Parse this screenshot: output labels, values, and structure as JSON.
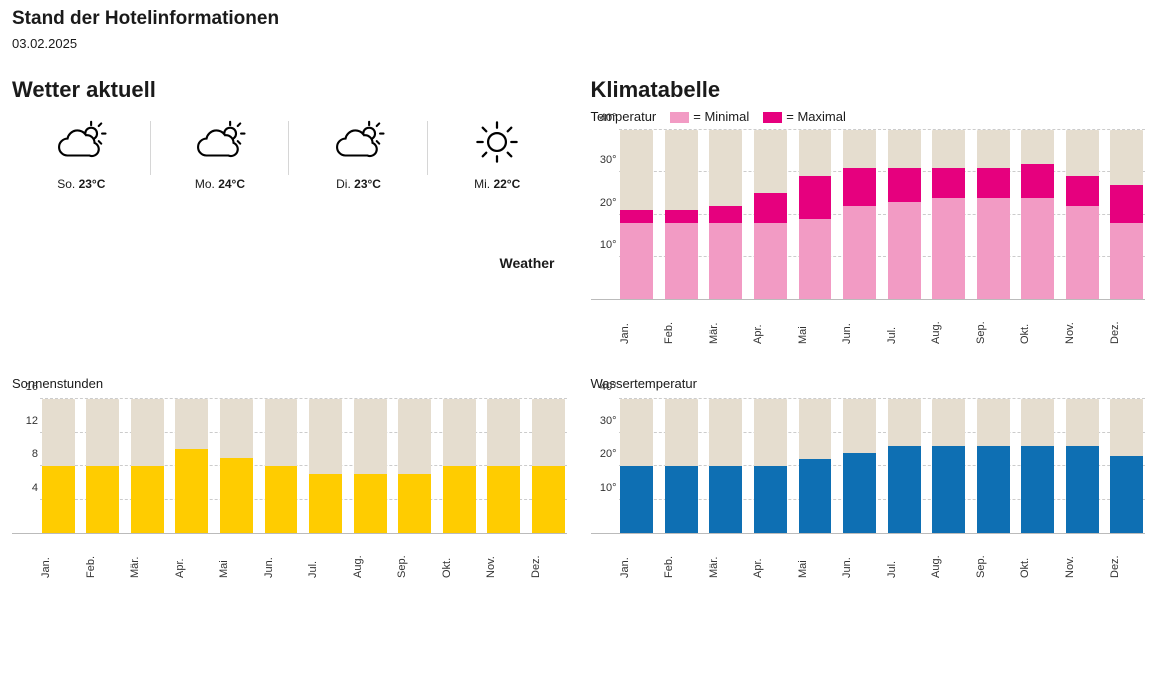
{
  "header": {
    "title": "Stand der Hotelinformationen",
    "date": "03.02.2025"
  },
  "weather_current": {
    "title": "Wetter aktuell",
    "days": [
      {
        "day": "So.",
        "temp": "23°C",
        "icon": "partly-cloudy"
      },
      {
        "day": "Mo.",
        "temp": "24°C",
        "icon": "partly-cloudy"
      },
      {
        "day": "Di.",
        "temp": "23°C",
        "icon": "partly-cloudy"
      },
      {
        "day": "Mi.",
        "temp": "22°C",
        "icon": "sunny"
      }
    ],
    "source_prefix": "",
    "source": "Weather"
  },
  "months": [
    "Jan.",
    "Feb.",
    "Mär.",
    "Apr.",
    "Mai",
    "Jun.",
    "Jul.",
    "Aug.",
    "Sep.",
    "Okt.",
    "Nov.",
    "Dez."
  ],
  "climate_table": {
    "title": "Klimatabelle",
    "legend_label": "Temperatur",
    "legend_min": "= Minimal",
    "legend_max": "= Maximal",
    "ymax": 40,
    "yticks": [
      10,
      20,
      30,
      40
    ],
    "ytick_labels": [
      "10°",
      "20°",
      "30°",
      "40°"
    ],
    "min_color": "#f29bc4",
    "max_color": "#e6007e",
    "bg_bar_color": "#e5ddcf",
    "grid_color": "#cccccc",
    "minimal": [
      18,
      18,
      18,
      18,
      19,
      22,
      23,
      24,
      24,
      24,
      22,
      18
    ],
    "maximal": [
      21,
      21,
      22,
      25,
      29,
      31,
      31,
      31,
      31,
      32,
      29,
      27
    ]
  },
  "sun_hours": {
    "title": "Sonnenstunden",
    "ymax": 16,
    "yticks": [
      4,
      8,
      12,
      16
    ],
    "ytick_labels": [
      "4",
      "8",
      "12",
      "16"
    ],
    "bar_color": "#ffcc00",
    "bg_bar_color": "#e5ddcf",
    "grid_color": "#cccccc",
    "values": [
      8,
      8,
      8,
      10,
      9,
      8,
      7,
      7,
      7,
      8,
      8,
      8
    ]
  },
  "water_temp": {
    "title": "Wassertemperatur",
    "ymax": 40,
    "yticks": [
      10,
      20,
      30,
      40
    ],
    "ytick_labels": [
      "10°",
      "20°",
      "30°",
      "40°"
    ],
    "bar_color": "#0e6fb3",
    "bg_bar_color": "#e5ddcf",
    "grid_color": "#cccccc",
    "values": [
      20,
      20,
      20,
      20,
      22,
      24,
      26,
      26,
      26,
      26,
      26,
      23
    ]
  }
}
